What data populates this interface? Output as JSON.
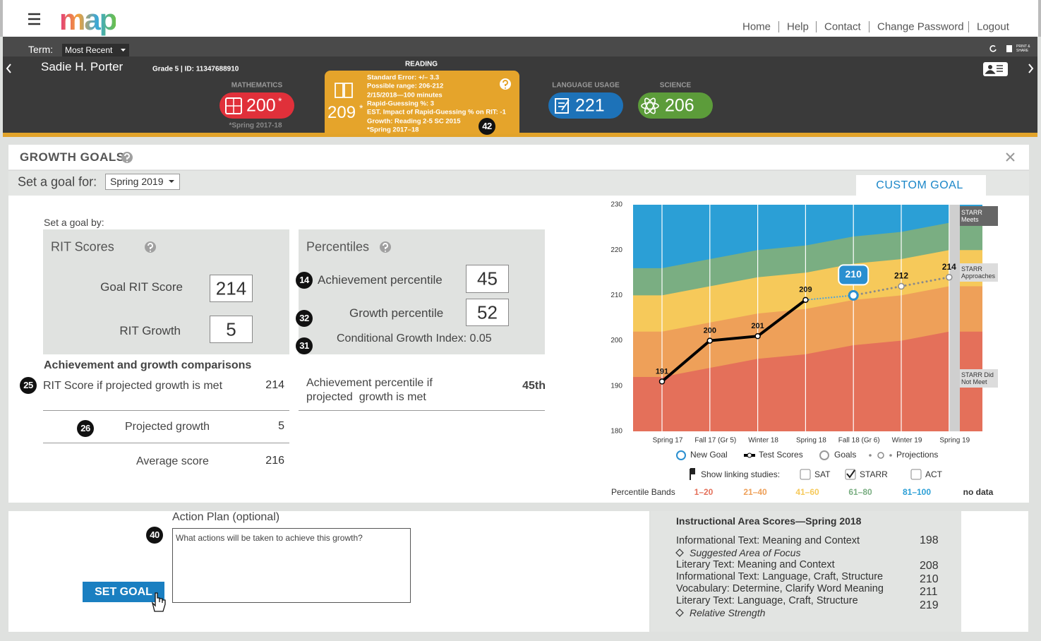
{
  "header": {
    "logo": "map",
    "nav": [
      "Home",
      "Help",
      "Contact",
      "Change Password",
      "Logout"
    ]
  },
  "term_bar": {
    "label": "Term:",
    "selected": "Most Recent",
    "print": "PRINT & SHARE"
  },
  "student": {
    "name": "Sadie H. Porter",
    "info": "Grade 5 | ID: 11347688910"
  },
  "subjects": [
    {
      "name": "MATHEMATICS",
      "score": 200,
      "mark": "*",
      "note": "*Spring 2017-18"
    },
    {
      "name": "READING",
      "score": 209,
      "mark": "*",
      "callout": 42,
      "details": [
        "Standard Error: +/– 3.3",
        "Possible range: 206-212",
        "2/15/2018—100 minutes",
        "Rapid-Guessing %: 3",
        "EST. Impact of Rapid-Guessing % on RIT: -1",
        "Growth: Reading 2-5 SC 2015",
        "*Spring 2017–18"
      ]
    },
    {
      "name": "LANGUAGE USAGE",
      "score": 221
    },
    {
      "name": "SCIENCE",
      "score": 206
    }
  ],
  "panel": {
    "title": "GROWTH GOALS",
    "set_goal_label": "Set a goal for:",
    "set_goal_term": "Spring 2019",
    "tab": "CUSTOM GOAL",
    "goal_by": "Set a goal by:"
  },
  "rit": {
    "title": "RIT Scores",
    "goal_label": "Goal RIT Score",
    "goal_value": 214,
    "growth_label": "RIT Growth",
    "growth_value": 5
  },
  "percentiles": {
    "title": "Percentiles",
    "achievement_label": "Achievement percentile",
    "achievement_value": 45,
    "achievement_callout": 14,
    "growth_label": "Growth percentile",
    "growth_value": 52,
    "growth_callout": 32,
    "cgi": "Conditional Growth Index: 0.05",
    "cgi_callout": 31
  },
  "comparisons": {
    "title": "Achievement and growth comparisons",
    "rows": [
      {
        "label": "RIT Score if projected growth is met",
        "value": 214,
        "callout": 25
      },
      {
        "label": "Projected growth",
        "value": 5,
        "callout": 26
      },
      {
        "label": "Average score",
        "value": 216
      }
    ],
    "achievement_label": "Achievement percentile if projected  growth is met",
    "achievement_value": "45th"
  },
  "action_plan": {
    "title": "Action Plan (optional)",
    "placeholder": "What actions will be taken to achieve this growth?",
    "button": "SET GOAL",
    "callout": 40
  },
  "instructional": {
    "title": "Instructional Area Scores—Spring 2018",
    "areas": [
      {
        "name": "Informational Text: Meaning and Context",
        "score": 198,
        "note": "Suggested Area of Focus"
      },
      {
        "name": "Literary Text: Meaning and Context",
        "score": 208
      },
      {
        "name": "Informational Text: Language, Craft, Structure",
        "score": 210
      },
      {
        "name": "Vocabulary: Determine, Clarify Word Meaning",
        "score": 211
      },
      {
        "name": "Literary Text: Language, Craft, Structure",
        "score": 219,
        "note": "Relative Strength"
      }
    ]
  },
  "growth_chart": {
    "type": "line",
    "categories": [
      "Spring 17",
      "Fall 17 (Gr 5)",
      "Winter 18",
      "Spring 18",
      "Fall 18 (Gr 6)",
      "Winter 19",
      "Spring 19"
    ],
    "ylim": [
      180,
      230
    ],
    "yticks": [
      180,
      190,
      200,
      210,
      220,
      230
    ],
    "test_scores": {
      "name": "Test Scores",
      "color": "#000000",
      "values": [
        191,
        200,
        201,
        209,
        null,
        null,
        null
      ]
    },
    "new_goal": {
      "name": "New Goal",
      "color": "#2a8fd0",
      "values": [
        null,
        null,
        null,
        null,
        210,
        null,
        null
      ]
    },
    "projections": {
      "name": "Projections",
      "color": "#8a8a8a",
      "values": [
        null,
        null,
        null,
        null,
        null,
        212,
        214
      ]
    },
    "goals": {
      "name": "Goals",
      "color": "#999999"
    },
    "bands": {
      "label": "Percentile Bands",
      "no_data": "no data",
      "items": [
        {
          "name": "1–20",
          "color": "#e4705a",
          "upper": [
            192,
            194,
            196,
            197,
            199,
            200,
            202
          ]
        },
        {
          "name": "21–40",
          "color": "#eea059",
          "upper": [
            202,
            204,
            206,
            207,
            209,
            210,
            212
          ]
        },
        {
          "name": "41–60",
          "color": "#f6c95a",
          "upper": [
            210,
            212,
            214,
            215,
            217,
            218,
            220
          ]
        },
        {
          "name": "61–80",
          "color": "#7aae82",
          "upper": [
            216,
            218,
            220,
            221,
            223,
            224,
            226
          ]
        },
        {
          "name": "81–100",
          "color": "#2b9fd6"
        }
      ]
    },
    "starr_labels": [
      "STARR Meets",
      "STARR Approaches",
      "STARR Did Not Meet"
    ],
    "linking": {
      "label": "Show linking studies:",
      "studies": [
        {
          "name": "SAT",
          "checked": false
        },
        {
          "name": "STARR",
          "checked": true
        },
        {
          "name": "ACT",
          "checked": false
        }
      ]
    }
  }
}
